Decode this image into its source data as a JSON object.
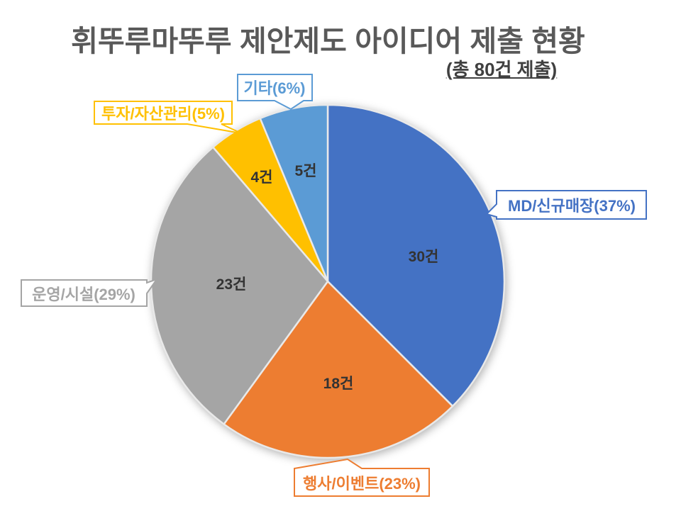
{
  "page": {
    "title": "휘뚜루마뚜루 제안제도 아이디어 제출 현황",
    "subtitle": "(총 80건 제출)"
  },
  "chart_data": {
    "type": "pie",
    "title": "휘뚜루마뚜루 제안제도 아이디어 제출 현황",
    "subtitle": "(총 80건 제출)",
    "total": 80,
    "start_angle_deg": 0,
    "direction": "clockwise",
    "legend": "none",
    "categories": [
      "MD/신규매장",
      "행사/이벤트",
      "운영/시설",
      "투자/자산관리",
      "기타"
    ],
    "series": [
      {
        "name": "MD/신규매장",
        "value": 30,
        "percent": 37,
        "callout_label": "MD/신규매장(37%)",
        "count_label": "30건",
        "color": "#4472C4"
      },
      {
        "name": "행사/이벤트",
        "value": 18,
        "percent": 23,
        "callout_label": "행사/이벤트(23%)",
        "count_label": "18건",
        "color": "#ED7D31"
      },
      {
        "name": "운영/시설",
        "value": 23,
        "percent": 29,
        "callout_label": "운영/시설(29%)",
        "count_label": "23건",
        "color": "#A5A5A5"
      },
      {
        "name": "투자/자산관리",
        "value": 4,
        "percent": 5,
        "callout_label": "투자/자산관리(5%)",
        "count_label": "4건",
        "color": "#FFC000"
      },
      {
        "name": "기타",
        "value": 5,
        "percent": 6,
        "callout_label": "기타(6%)",
        "count_label": "5건",
        "color": "#5B9BD5"
      }
    ],
    "colors": {
      "title_text": "#595959",
      "subtitle_text": "#404040",
      "data_label_text": "#333333",
      "slice_border": "#E9E9E9",
      "background": "#FFFFFF"
    }
  }
}
